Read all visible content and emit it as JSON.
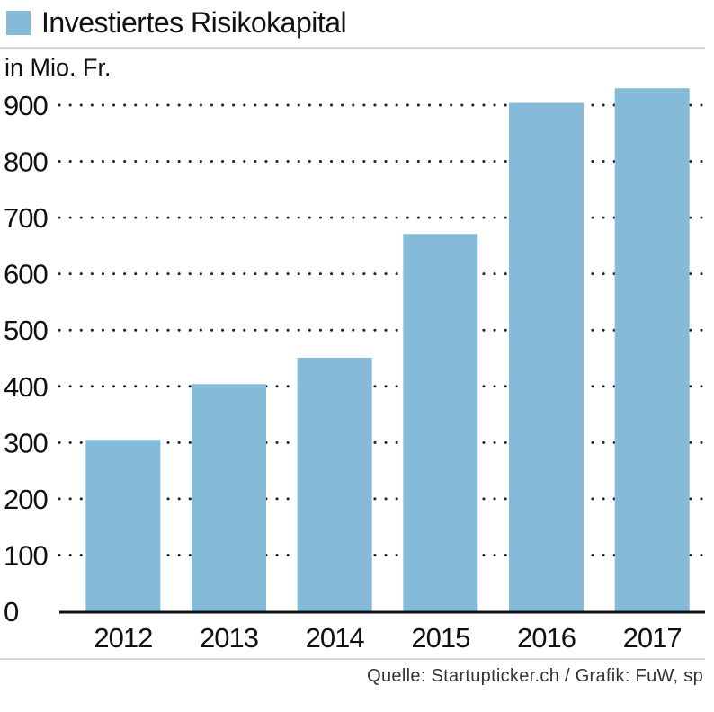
{
  "legend": {
    "label": "Investiertes Risikokapital"
  },
  "source": "Quelle: Startupticker.ch / Grafik: FuW, sp",
  "colors": {
    "bar": "#85bbd9",
    "grid": "#222222",
    "axis": "#111111",
    "rule": "#d6d6d6"
  },
  "chart_data": {
    "type": "bar",
    "title": "",
    "unit_label": "in Mio. Fr.",
    "xlabel": "",
    "ylabel": "in Mio. Fr.",
    "ylim": [
      0,
      900
    ],
    "yticks": [
      0,
      100,
      200,
      300,
      400,
      500,
      600,
      700,
      800,
      900
    ],
    "grid": true,
    "grid_style": "dotted",
    "categories": [
      "2012",
      "2013",
      "2014",
      "2015",
      "2016",
      "2017"
    ],
    "series": [
      {
        "name": "Investiertes Risikokapital",
        "values": [
          305,
          404,
          451,
          671,
          904,
          930
        ]
      }
    ]
  }
}
